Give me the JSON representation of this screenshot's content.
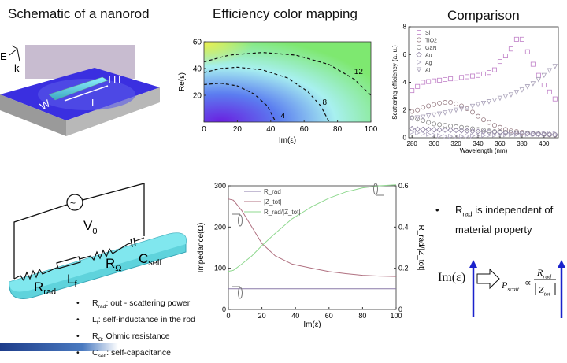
{
  "titles": {
    "schematic": "Schematic of a nanorod",
    "mapping": "Efficiency color mapping",
    "comparison": "Comparison"
  },
  "schematic": {
    "E": "E",
    "k": "k",
    "H": "H",
    "L": "L",
    "W": "W"
  },
  "circuit": {
    "V": "V",
    "V_sub": "0",
    "C": "C",
    "C_sub": "self",
    "R_omega": "R",
    "R_omega_sub": "Ω",
    "L": "L",
    "L_sub": "f",
    "R_rad": "R",
    "R_rad_sub": "rad"
  },
  "legend_bullets": [
    {
      "sym": "R",
      "sub": "rad",
      "text": ": out - scattering power"
    },
    {
      "sym": "L",
      "sub": "f",
      "text": ": self-inductance in the rod"
    },
    {
      "sym": "R",
      "sub": "Ω:",
      "text": " Ohmic resistance"
    },
    {
      "sym": "C",
      "sub": "self",
      "text": ": self-capacitance"
    }
  ],
  "note": {
    "sym": "R",
    "sub": "rad",
    "text": " is independent of material property"
  },
  "formula": {
    "lhs": "Im(ε)",
    "P": "P",
    "P_sub": "scatt",
    "prop": "∝",
    "num": "R",
    "num_sub": "rad",
    "den": "Z",
    "den_sub": "tot"
  },
  "colors": {
    "arrow": "#1a22cc",
    "rod": "#5fd3dc",
    "slab": "#3a2fe0"
  },
  "chart_data": [
    {
      "type": "heatmap",
      "title": "Efficiency color mapping",
      "xlabel": "Im(ε)",
      "ylabel": "Re(ε)",
      "xlim": [
        0,
        100
      ],
      "ylim": [
        0,
        60
      ],
      "xticks": [
        0,
        20,
        40,
        60,
        80,
        100
      ],
      "yticks": [
        20,
        40,
        60
      ],
      "colormap": [
        "#6a1fe0",
        "#5b7df0",
        "#a8f0f0",
        "#7ee870",
        "#f0f050"
      ],
      "contours": [
        {
          "label": "4",
          "points": [
            [
              0,
              28
            ],
            [
              10,
              29
            ],
            [
              20,
              27
            ],
            [
              30,
              21
            ],
            [
              38,
              12
            ],
            [
              43,
              0
            ]
          ]
        },
        {
          "label": "8",
          "points": [
            [
              0,
              37
            ],
            [
              10,
              40
            ],
            [
              20,
              41
            ],
            [
              35,
              39
            ],
            [
              50,
              33
            ],
            [
              62,
              23
            ],
            [
              70,
              12
            ],
            [
              75,
              0
            ]
          ]
        },
        {
          "label": "12",
          "points": [
            [
              0,
              45
            ],
            [
              15,
              50
            ],
            [
              35,
              52
            ],
            [
              55,
              50
            ],
            [
              75,
              43
            ],
            [
              90,
              32
            ],
            [
              100,
              20
            ]
          ]
        }
      ]
    },
    {
      "type": "scatter",
      "title": "Comparison",
      "xlabel": "Wavelength (nm)",
      "ylabel": "Scattering efficiency (a. u.)",
      "xlim": [
        277,
        413
      ],
      "ylim": [
        0,
        8
      ],
      "xticks": [
        280,
        300,
        320,
        340,
        360,
        380,
        400
      ],
      "yticks": [
        0,
        2,
        4,
        6,
        8
      ],
      "legend": "top-left",
      "x": [
        280,
        285,
        290,
        295,
        300,
        305,
        310,
        315,
        320,
        325,
        330,
        335,
        340,
        345,
        350,
        355,
        360,
        365,
        370,
        375,
        380,
        385,
        390,
        395,
        400,
        405,
        410
      ],
      "series": [
        {
          "name": "Si",
          "marker": "square",
          "color": "#c080c8",
          "values": [
            3.4,
            3.7,
            4.0,
            4.05,
            4.1,
            4.15,
            4.2,
            4.25,
            4.3,
            4.35,
            4.4,
            4.45,
            4.5,
            4.6,
            4.7,
            4.9,
            5.5,
            5.9,
            6.4,
            7.1,
            7.1,
            6.2,
            5.3,
            4.5,
            3.8,
            3.3,
            2.8
          ]
        },
        {
          "name": "TiO2",
          "marker": "circle",
          "color": "#9a7f86",
          "values": [
            1.9,
            2.0,
            2.2,
            2.3,
            2.4,
            2.5,
            2.55,
            2.55,
            2.45,
            2.3,
            2.1,
            1.85,
            1.55,
            1.3,
            1.1,
            0.9,
            0.75,
            0.6,
            0.5,
            0.45,
            0.4,
            0.35,
            0.3,
            0.28,
            0.25,
            0.22,
            0.2
          ]
        },
        {
          "name": "GaN",
          "marker": "circle",
          "color": "#8a8a8a",
          "values": [
            1.45,
            1.35,
            1.25,
            1.1,
            1.0,
            0.95,
            0.9,
            0.85,
            0.8,
            0.75,
            0.7,
            0.65,
            0.6,
            0.55,
            0.5,
            0.45,
            0.42,
            0.4,
            0.38,
            0.36,
            0.34,
            0.32,
            0.3,
            0.28,
            0.26,
            0.24,
            0.22
          ]
        },
        {
          "name": "Au",
          "marker": "diamond",
          "color": "#8b7fa0",
          "values": [
            0.65,
            0.62,
            0.6,
            0.6,
            0.58,
            0.57,
            0.56,
            0.55,
            0.54,
            0.52,
            0.5,
            0.48,
            0.46,
            0.44,
            0.42,
            0.4,
            0.38,
            0.36,
            0.34,
            0.32,
            0.3,
            0.29,
            0.28,
            0.26,
            0.25,
            0.24,
            0.23
          ]
        },
        {
          "name": "Ag",
          "marker": "triangle-right",
          "color": "#b0a8c0",
          "values": [
            0.4,
            0.35,
            0.3,
            0.25,
            0.2,
            0.15,
            0.1,
            0.1,
            0.1,
            0.1,
            0.12,
            0.14,
            0.16,
            0.18,
            0.2,
            0.2,
            0.22,
            0.22,
            0.24,
            0.24,
            0.25,
            0.25,
            0.26,
            0.26,
            0.27,
            0.27,
            0.28
          ]
        },
        {
          "name": "Al",
          "marker": "triangle-down",
          "color": "#a8a0b8",
          "values": [
            1.4,
            1.45,
            1.5,
            1.58,
            1.65,
            1.72,
            1.8,
            1.9,
            2.0,
            2.08,
            2.15,
            2.28,
            2.4,
            2.5,
            2.6,
            2.72,
            2.85,
            2.98,
            3.1,
            3.28,
            3.45,
            3.68,
            3.9,
            4.2,
            4.5,
            4.85,
            5.15
          ]
        }
      ]
    },
    {
      "type": "line",
      "xlabel": "Im(ε)",
      "ylabel": "Impedance(Ω)",
      "y2label": "R_rad/|Z_tot|",
      "xlim": [
        0,
        100
      ],
      "ylim": [
        0,
        300
      ],
      "y2lim": [
        0,
        0.6
      ],
      "xticks": [
        0,
        20,
        40,
        60,
        80,
        100
      ],
      "yticks": [
        0,
        100,
        200,
        300
      ],
      "y2ticks": [
        0,
        0.2,
        0.4,
        0.6
      ],
      "legend": "top-left",
      "x": [
        0,
        3,
        8,
        14,
        20,
        28,
        38,
        50,
        60,
        70,
        80,
        90,
        100
      ],
      "series": [
        {
          "name": "R_rad",
          "axis": "left",
          "color": "#8a7aa8",
          "values": [
            50,
            50,
            50,
            50,
            50,
            50,
            50,
            50,
            50,
            50,
            50,
            50,
            50
          ]
        },
        {
          "name": "|Z_tot|",
          "axis": "left",
          "color": "#b07080",
          "values": [
            268,
            265,
            240,
            200,
            160,
            130,
            110,
            100,
            92,
            87,
            83,
            81,
            80
          ]
        },
        {
          "name": "R_rad/|Z_tot|",
          "axis": "right",
          "color": "#8fd88f",
          "values": [
            0.185,
            0.19,
            0.22,
            0.26,
            0.31,
            0.37,
            0.44,
            0.5,
            0.54,
            0.57,
            0.59,
            0.6,
            0.605
          ]
        }
      ]
    }
  ]
}
